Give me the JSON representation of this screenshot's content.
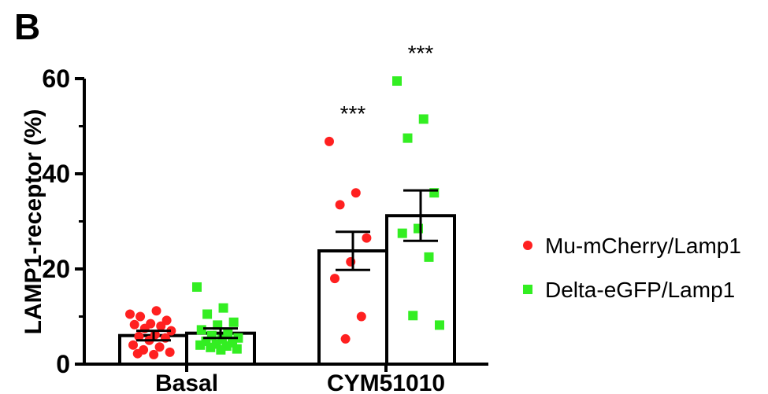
{
  "panel_label": "B",
  "chart_data": {
    "type": "bar",
    "categories": [
      "Basal",
      "CYM51010"
    ],
    "ylabel": "LAMP1-receptor (%)",
    "ylim": [
      0,
      60
    ],
    "yticks": [
      0,
      20,
      40,
      60
    ],
    "grid": false,
    "legend_position": "right",
    "series": [
      {
        "name": "Mu-mCherry/Lamp1",
        "marker": "circle",
        "color": "#ff2020",
        "means": [
          6.0,
          23.8
        ],
        "sem": [
          1.0,
          4.0
        ],
        "points": [
          [
            10.5,
            11.2,
            10.0,
            9.2,
            8.5,
            8.3,
            8.0,
            7.5,
            7.0,
            6.2,
            5.8,
            5.5,
            5.0,
            4.0,
            3.6,
            3.0,
            2.5,
            2.0,
            2.2
          ],
          [
            46.8,
            36.0,
            33.5,
            26.5,
            21.5,
            18.0,
            10.0,
            5.3
          ]
        ]
      },
      {
        "name": "Delta-eGFP/Lamp1",
        "marker": "square",
        "color": "#33ee22",
        "means": [
          6.5,
          31.2
        ],
        "sem": [
          1.0,
          5.3
        ],
        "points": [
          [
            16.2,
            11.8,
            10.5,
            8.8,
            8.2,
            7.2,
            6.5,
            6.0,
            5.5,
            5.2,
            4.8,
            4.5,
            4.2,
            4.0,
            3.8,
            3.5,
            3.2,
            3.0
          ],
          [
            59.5,
            51.5,
            47.5,
            36.0,
            28.5,
            27.5,
            22.5,
            10.2,
            8.2
          ]
        ]
      }
    ],
    "annotations": [
      {
        "category": "CYM51010",
        "series": "Mu-mCherry/Lamp1",
        "text": "***"
      },
      {
        "category": "CYM51010",
        "series": "Delta-eGFP/Lamp1",
        "text": "***"
      }
    ]
  }
}
